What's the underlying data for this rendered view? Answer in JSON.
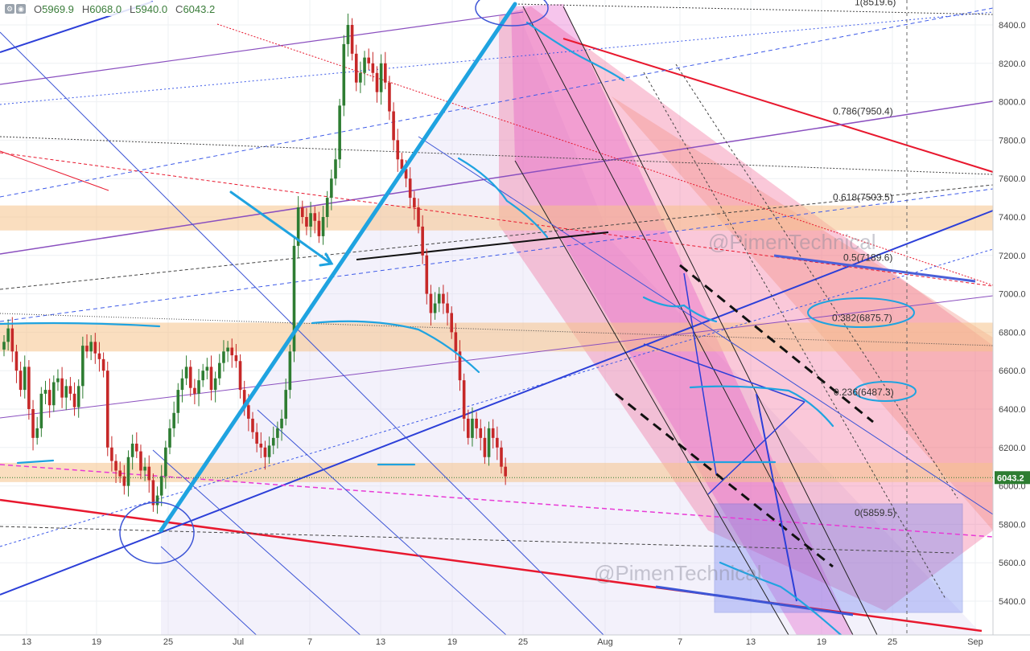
{
  "legend": {
    "open_label": "O",
    "open": "5969.9",
    "high_label": "H",
    "high": "6068.0",
    "low_label": "L",
    "low": "5940.0",
    "close_label": "C",
    "close": "6043.2"
  },
  "watermark": "@PimenTechnical",
  "last_price_label": "6043.2",
  "colors": {
    "background": "#ffffff",
    "candle_up": "#2e7d32",
    "candle_down": "#c62828",
    "hand_drawn": "#1fa3e0",
    "fib_zone_pink": "#f06292",
    "resistance_band": "#f5c28a",
    "price_tag": "#2e7d32"
  },
  "chart_data": {
    "type": "candlestick",
    "title": "",
    "xlabel": "",
    "ylabel": "",
    "ylim": [
      5250,
      8520
    ],
    "y_ticks": [
      5400,
      5600,
      5800,
      6000,
      6200,
      6400,
      6600,
      6800,
      7000,
      7200,
      7400,
      7600,
      7800,
      8000,
      8200,
      8400
    ],
    "x_ticks": [
      "13",
      "19",
      "25",
      "Jul",
      "7",
      "13",
      "19",
      "25",
      "Aug",
      "7",
      "13",
      "19",
      "25",
      "Sep"
    ],
    "last_price": 6043.2,
    "fib_levels": [
      {
        "label": "1(8519.6)",
        "value": 8519.6
      },
      {
        "label": "0.786(7950.4)",
        "value": 7950.4
      },
      {
        "label": "0.618(7503.5)",
        "value": 7503.5
      },
      {
        "label": "0.5(7189.6)",
        "value": 7189.6
      },
      {
        "label": "0.382(6875.7)",
        "value": 6875.7
      },
      {
        "label": "0.236(6487.3)",
        "value": 6487.3
      },
      {
        "label": "0(5859.5)",
        "value": 5859.5
      }
    ],
    "bands": [
      {
        "from": 7330,
        "to": 7460
      },
      {
        "from": 6700,
        "to": 6850
      },
      {
        "from": 6020,
        "to": 6120
      }
    ],
    "candles_close": [
      6750,
      6820,
      6700,
      6600,
      6500,
      6620,
      6400,
      6250,
      6300,
      6480,
      6500,
      6420,
      6540,
      6560,
      6460,
      6520,
      6480,
      6410,
      6520,
      6730,
      6700,
      6750,
      6690,
      6660,
      6600,
      6200,
      6130,
      6080,
      6050,
      6000,
      6150,
      6220,
      6180,
      6080,
      6100,
      6030,
      5900,
      5950,
      6050,
      6200,
      6300,
      6380,
      6500,
      6560,
      6620,
      6510,
      6480,
      6550,
      6600,
      6620,
      6500,
      6560,
      6640,
      6700,
      6720,
      6680,
      6650,
      6500,
      6420,
      6350,
      6280,
      6220,
      6200,
      6150,
      6210,
      6250,
      6300,
      6350,
      6500,
      6700,
      7250,
      7450,
      7400,
      7350,
      7420,
      7380,
      7300,
      7400,
      7500,
      7600,
      7700,
      7980,
      8300,
      8400,
      8250,
      8100,
      8150,
      8230,
      8200,
      8150,
      8050,
      8200,
      8100,
      7950,
      7800,
      7700,
      7650,
      7600,
      7500,
      7450,
      7350,
      7200,
      7000,
      6900,
      6950,
      7000,
      6950,
      6900,
      6800,
      6700,
      6550,
      6350,
      6250,
      6350,
      6300,
      6250,
      6150,
      6300,
      6250,
      6200,
      6100,
      6050
    ]
  }
}
